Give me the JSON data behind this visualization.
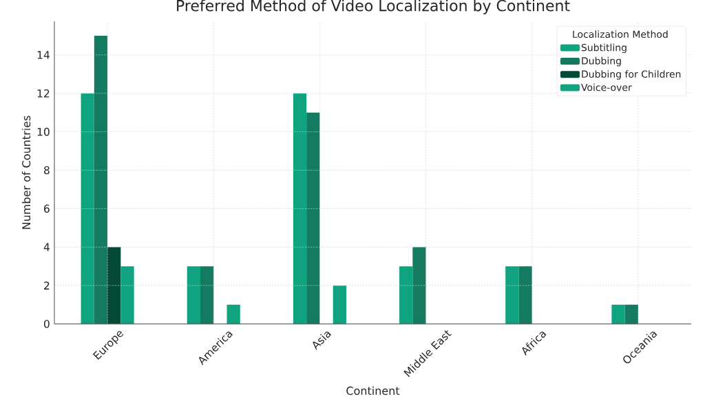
{
  "chart_data": {
    "type": "bar",
    "title": "Preferred Method of Video Localization by Continent",
    "xlabel": "Continent",
    "ylabel": "Number of Countries",
    "legend_title": "Localization Method",
    "categories": [
      "Europe",
      "America",
      "Asia",
      "Middle East",
      "Africa",
      "Oceania"
    ],
    "series": [
      {
        "name": "Subtitling",
        "color": "#10a37f",
        "values": [
          12,
          3,
          12,
          3,
          3,
          1
        ]
      },
      {
        "name": "Dubbing",
        "color": "#147a60",
        "values": [
          15,
          3,
          11,
          4,
          3,
          1
        ]
      },
      {
        "name": "Dubbing for Children",
        "color": "#054a37",
        "values": [
          4,
          0,
          0,
          0,
          0,
          0
        ]
      },
      {
        "name": "Voice-over",
        "color": "#10a37f",
        "values": [
          3,
          1,
          2,
          0,
          0,
          0
        ]
      }
    ],
    "ylim": [
      0,
      15.75
    ],
    "yticks": [
      0,
      2,
      4,
      6,
      8,
      10,
      12,
      14
    ],
    "grid": true,
    "legend": "top right"
  }
}
